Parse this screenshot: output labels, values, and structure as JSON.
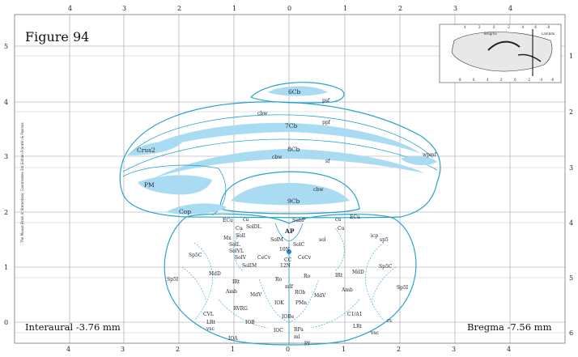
{
  "figure_title": "Figure 94",
  "interaural": "Interaural -3.76 mm",
  "bregma": "Bregma -7.56 mm",
  "side_note": "The Mouse Brain in Stereotaxic Coordinates 3rd Edition  Franklin & Paxinos",
  "top_ticks": [
    "4",
    "3",
    "2",
    "1",
    "0",
    "1",
    "2",
    "3",
    "4"
  ],
  "bottom_ticks": [
    "4",
    "3",
    "2",
    "1",
    "0",
    "1",
    "2",
    "3",
    "4"
  ],
  "left_ticks": [
    "5",
    "4",
    "3",
    "2",
    "1",
    "0"
  ],
  "right_ticks": [
    "1",
    "2",
    "3",
    "4",
    "5",
    "6"
  ],
  "inset": {
    "top_ticks": [
      "4",
      "2",
      "0",
      "-2",
      "-4",
      "-6",
      "-8"
    ],
    "bottom_ticks": [
      "8",
      "6",
      "4",
      "2",
      "0",
      "-2",
      "-4",
      "-6"
    ],
    "bregma_label": "Bregma",
    "lambda_label": "Lambda"
  },
  "colors": {
    "outline": "#2aa3cc",
    "white_matter": "#a9dcf2",
    "marker": "#1e88d2"
  },
  "labels": {
    "cb6": "6Cb",
    "psf": "psf",
    "cbw_top": "cbw",
    "cb7": "7Cb",
    "ppf": "ppf",
    "crus2": "Crus2",
    "cb8": "8Cb",
    "cbw_mid": "cbw",
    "sf": "sf",
    "wpmf": "wpmf",
    "pm": "PM",
    "cbw_low": "cbw",
    "cb9": "9Cb",
    "cop": "Cop",
    "subp": "SubP",
    "ecu_l": "ECu",
    "cu_l": "cu",
    "cu2_l": "Cu",
    "soldl": "SolDL",
    "mx": "Mx",
    "soll": "SolI",
    "solm": "SolM",
    "ap": "AP",
    "cu_r": "cu",
    "ecu_r": "ECu",
    "cu2_r": "Cu",
    "icp": "icp",
    "sp5_r": "sp5",
    "sol": "sol",
    "n10": "10N",
    "sol2": "SolL",
    "solvl": "SolVL",
    "solv": "SolV",
    "sp5c_l": "Sp5C",
    "cecv_l": "CeCv",
    "cc": "CC",
    "cecv_r": "CeCv",
    "n12": "12N",
    "solim": "SolIM",
    "md_l": "MdD",
    "md_r": "MdD",
    "sp5c_r": "Sp5C",
    "sp5i_l": "Sp5I",
    "sp5i_r": "Sp5I",
    "irt_l": "IRt",
    "ro_l": "Ro",
    "ro_r": "Ro",
    "irt_r": "IRt",
    "mdv_l": "MdV",
    "mdv_r": "MdV",
    "amb_l": "Amb",
    "amb_r": "Amb",
    "rob": "ROb",
    "mlf": "mlf",
    "pmn": "PMn",
    "iok": "IOK",
    "rvrg": "RVRG",
    "cvl": "CVL",
    "c1a1": "C1/A1",
    "iob": "IOB",
    "iobe": "IOBe",
    "lrt_l": "LRt",
    "lrt_r": "LRt",
    "rs": "rs",
    "vsc_l": "vsc",
    "vsc_r": "vsc",
    "ioc": "IOC",
    "rpa": "RPa",
    "ioa": "IOA",
    "ml": "ml",
    "py": "py",
    "sc": "SolC"
  }
}
